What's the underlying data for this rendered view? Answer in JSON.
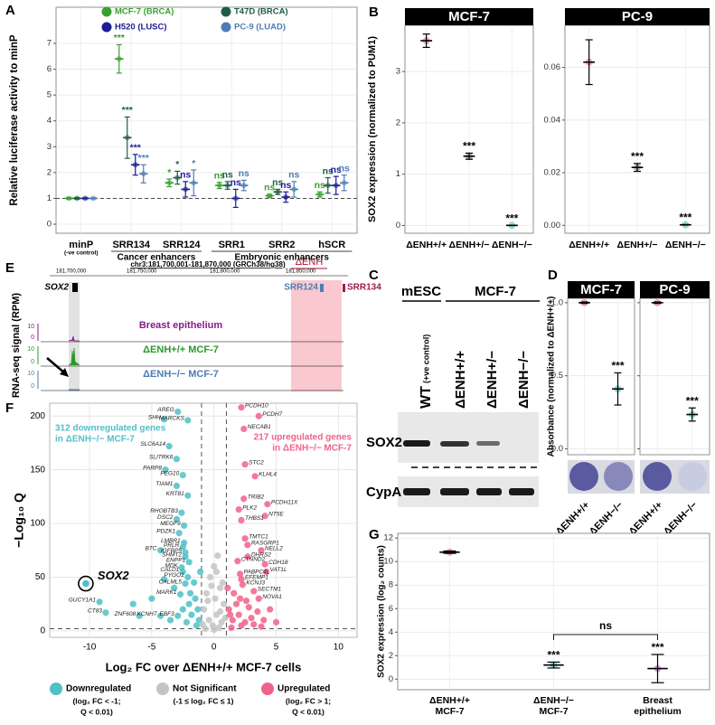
{
  "chart_data": [
    {
      "panel": "A",
      "type": "dot_errorbar",
      "ylabel": "Relative luciferase activity to minP",
      "categories": [
        "minP",
        "SRR134",
        "SRR124",
        "SRR1",
        "SRR2",
        "hSCR"
      ],
      "groups": [
        {
          "label": "(-ve control)",
          "members": [
            0
          ]
        },
        {
          "label": "Cancer enhancers",
          "members": [
            1,
            2
          ]
        },
        {
          "label": "Embryonic enhancers",
          "members": [
            3,
            4,
            5
          ]
        }
      ],
      "series": [
        {
          "name": "MCF-7 (BRCA)",
          "color": "#3aa02e",
          "values": [
            1,
            6.4,
            1.6,
            1.5,
            1.1,
            1.15
          ],
          "errors": [
            0.03,
            0.55,
            0.15,
            0.12,
            0.06,
            0.1
          ],
          "significance": [
            null,
            "***",
            "*",
            "ns",
            "ns",
            "ns"
          ]
        },
        {
          "name": "T47D (BRCA)",
          "color": "#1e5c48",
          "values": [
            1,
            3.35,
            1.8,
            1.5,
            1.25,
            1.5
          ],
          "errors": [
            0.03,
            0.8,
            0.25,
            0.15,
            0.1,
            0.3
          ],
          "significance": [
            null,
            "***",
            "*",
            "ns",
            "ns",
            "ns"
          ]
        },
        {
          "name": "H520 (LUSC)",
          "color": "#1c1c96",
          "values": [
            1,
            2.3,
            1.35,
            1.0,
            1.05,
            1.5
          ],
          "errors": [
            0.02,
            0.4,
            0.3,
            0.35,
            0.2,
            0.35
          ],
          "significance": [
            null,
            "***",
            "ns",
            "ns",
            "ns",
            "ns"
          ]
        },
        {
          "name": "PC-9 (LUAD)",
          "color": "#4d7db5",
          "values": [
            1,
            1.95,
            1.6,
            1.5,
            1.35,
            1.6
          ],
          "errors": [
            0.02,
            0.35,
            0.5,
            0.2,
            0.3,
            0.3
          ],
          "significance": [
            null,
            "***",
            "*",
            "ns",
            "ns",
            "ns"
          ]
        }
      ],
      "ylim": [
        -0.35,
        8.4
      ],
      "yticks": [
        0,
        1,
        2,
        3,
        4,
        5,
        6,
        7
      ],
      "reference_line": 1,
      "grid": true
    },
    {
      "panel": "B",
      "type": "dot_errorbar",
      "title": "MCF-7",
      "ylabel": "SOX2 expression (normalized to PUM1)",
      "categories": [
        "ΔENH+/+",
        "ΔENH+/−",
        "ΔENH−/−"
      ],
      "colors": [
        "#e8607f",
        "#777777",
        "#3fbfc0"
      ],
      "values": [
        3.6,
        1.35,
        0.003
      ],
      "errors": [
        0.13,
        0.06,
        0.003
      ],
      "significance": [
        null,
        "***",
        "***"
      ],
      "ylim": [
        -0.15,
        3.9
      ],
      "yticks": [
        0,
        1,
        2,
        3
      ],
      "errorbar_color": "#000000",
      "grid": true
    },
    {
      "type": "dot_errorbar",
      "title": "PC-9",
      "categories": [
        "ΔENH+/+",
        "ΔENH+/−",
        "ΔENH−/−"
      ],
      "colors": [
        "#e8607f",
        "#777777",
        "#3fbfc0"
      ],
      "values": [
        0.062,
        0.022,
        0.0002
      ],
      "errors": [
        0.0085,
        0.0015,
        0.0001
      ],
      "significance": [
        null,
        "***",
        "***"
      ],
      "ylim": [
        -0.003,
        0.076
      ],
      "yticks": [
        {
          "value": 0,
          "label": "0.00"
        },
        0.02,
        0.04,
        0.06
      ],
      "errorbar_color": "#000000",
      "grid": true
    },
    {
      "panel": "D",
      "type": "dot_errorbar",
      "title": "MCF-7",
      "ylabel": "Absorbance (normalized to ΔENH+/+)",
      "categories": [
        "ΔENH+/+",
        "ΔENH−/−"
      ],
      "colors": [
        "#e8607f",
        "#3fbfc0"
      ],
      "values": [
        1.0,
        0.41
      ],
      "errors": [
        0.005,
        0.11
      ],
      "significance": [
        null,
        "***"
      ],
      "ylim": [
        -0.04,
        1.03
      ],
      "yticks": [
        {
          "value": 0,
          "label": "0.0"
        },
        0.5,
        {
          "value": 1,
          "label": "1.0"
        }
      ],
      "errorbar_color": "#000000",
      "grid": true
    },
    {
      "type": "dot_errorbar",
      "title": "PC-9",
      "categories": [
        "ΔENH+/+",
        "ΔENH−/−"
      ],
      "colors": [
        "#e8607f",
        "#3fbfc0"
      ],
      "values": [
        1.0,
        0.235
      ],
      "errors": [
        0.005,
        0.045
      ],
      "significance": [
        null,
        "***"
      ],
      "ylim": [
        -0.04,
        1.03
      ],
      "yticks": [
        0,
        0.5,
        1
      ],
      "ytick_labels": false,
      "errorbar_color": "#000000",
      "grid": true
    },
    {
      "panel": "F",
      "type": "scatter",
      "xlabel": "Log₂ FC over ΔENH+/+ MCF-7 cells",
      "ylabel": "−Log₁₀ Q",
      "xlim": [
        -13.2,
        11.5
      ],
      "ylim": [
        -6,
        212
      ],
      "xticks": [
        -10,
        -5,
        0,
        5,
        10
      ],
      "yticks": [
        0,
        50,
        100,
        150,
        200
      ],
      "thresholds": {
        "x": [
          -1,
          1
        ],
        "y": 2
      },
      "annotations": [
        [
          "312 downregulated genes",
          "in ΔENH−/− MCF-7"
        ],
        [
          "217 upregulated genes",
          "in ΔENH−/− MCF-7"
        ]
      ],
      "highlight": {
        "label": "SOX2",
        "x": -10.3,
        "y": 44
      },
      "series": [
        {
          "name": "Downregulated",
          "description": [
            "(log₂ FC < -1;",
            "Q < 0.01)"
          ],
          "color": "#4fc0c8",
          "x": [
            -2.9,
            -4.0,
            -2.1,
            -3.6,
            -3.0,
            -3.9,
            -2.5,
            -3.0,
            -2.1,
            -2.6,
            -3.0,
            -2.4,
            -2.8,
            -2.4,
            -2.5,
            -4.3,
            -2.3,
            -2.3,
            -2.0,
            -2.6,
            -2.5,
            -2.1,
            -2.3,
            -2.7,
            -9.2,
            -8.7,
            -6.0,
            -4.3,
            -2.9,
            -1.5,
            -2.0,
            -1.3,
            -1.8,
            -3.2,
            -1.6,
            -1.2,
            -2.5,
            -3.5,
            -1.4,
            -5.0,
            -6.5,
            -2.2,
            -1.9,
            -1.1,
            -4.0
          ],
          "y": [
            204,
            197,
            196,
            172,
            160,
            150,
            145,
            135,
            126,
            110,
            104,
            98,
            91,
            82,
            78,
            75,
            73,
            69,
            64,
            59,
            55,
            50,
            44,
            34,
            27,
            17,
            14,
            14,
            14,
            30,
            25,
            20,
            15,
            40,
            45,
            10,
            20,
            10,
            5,
            30,
            25,
            8,
            35,
            55,
            48
          ],
          "labels": [
            "AREG",
            "SHH",
            "MARCKS",
            "SLC6A14",
            "SLITRK6",
            "PARP8",
            "PEG10",
            "TIAM1",
            "KRT81",
            "RHOBTB3",
            "DSC2",
            "MEGF9",
            "PDZK1",
            "LMBR1",
            "PRLR",
            "BTC",
            "IGFBP5",
            "SHMT2",
            "ENPP1",
            "MDK",
            "CALD1",
            "PYGO1",
            "CALML5",
            "MARK1",
            "GUCY1A1",
            "CT83",
            "ZNF608",
            "KCNH7",
            "EBF3",
            null,
            null,
            null,
            null,
            null,
            null,
            null,
            null,
            null,
            null,
            null,
            null,
            null,
            null,
            null,
            null
          ]
        },
        {
          "name": "Not Significant",
          "description": [
            "(-1 ≤ log₂ FC ≤ 1)"
          ],
          "color": "#c4c4c4",
          "x": [
            0,
            0.3,
            -0.3,
            0.5,
            -0.6,
            0.1,
            0.8,
            -0.8,
            0.2,
            -0.4,
            0.6,
            -0.1,
            0.4,
            -0.7,
            0.9,
            -0.9,
            0.0,
            0.5,
            -0.5,
            0.7,
            0.2,
            -0.2
          ],
          "y": [
            60,
            70,
            50,
            40,
            35,
            30,
            25,
            20,
            15,
            10,
            8,
            5,
            3,
            2,
            12,
            6,
            1,
            18,
            28,
            45,
            55,
            42
          ]
        },
        {
          "name": "Upregulated",
          "description": [
            "(log₂ FC > 1;",
            "Q < 0.01)"
          ],
          "color": "#f0628a",
          "x": [
            2.2,
            3.6,
            2.4,
            2.5,
            3.3,
            2.4,
            4.3,
            2.0,
            4.1,
            2.2,
            2.5,
            2.7,
            3.8,
            2.7,
            1.9,
            4.1,
            2.1,
            4.2,
            2.2,
            2.3,
            3.2,
            3.6,
            1.5,
            2.0,
            2.5,
            3.0,
            1.2,
            1.8,
            2.2,
            3.5,
            4.0,
            1.4,
            2.8,
            1.6,
            3.2,
            4.5,
            1.1,
            2.6,
            3.8,
            1.3,
            5.0,
            2.1
          ],
          "y": [
            208,
            200,
            188,
            155,
            144,
            123,
            118,
            113,
            107,
            103,
            86,
            80,
            75,
            69,
            65,
            62,
            53,
            55,
            48,
            43,
            37,
            30,
            10,
            15,
            8,
            12,
            20,
            25,
            5,
            18,
            10,
            3,
            22,
            35,
            6,
            20,
            40,
            28,
            4,
            15,
            8,
            30
          ],
          "labels": [
            "PCDH10",
            "PCDH7",
            "NECAB1",
            "STC2",
            "KLHL4",
            "TRIB2",
            "PCDH11X",
            "PLK2",
            "NT5E",
            "THBS1",
            "TMTC1",
            "RASGRP1",
            "NELL2",
            "DHRS2",
            "CTNND2",
            "CDH18",
            "PABPC4L",
            "VAT1L",
            "EFEMP1",
            "KCNJ3",
            "SECTM1",
            "NOVA1",
            null,
            null,
            null,
            null,
            null,
            null,
            null,
            null,
            null,
            null,
            null,
            null,
            null,
            null,
            null,
            null,
            null,
            null,
            null,
            null
          ]
        }
      ],
      "grid": true
    },
    {
      "panel": "G",
      "type": "dot_errorbar",
      "ylabel": "SOX2 expression (log₂ counts)",
      "categories": [
        [
          "ΔENH+/+",
          "MCF-7"
        ],
        [
          "ΔENH−/−",
          "MCF-7"
        ],
        [
          "Breast",
          "epithelium"
        ]
      ],
      "colors": [
        "#e8607f",
        "#3fbfc0",
        "#b06cc0"
      ],
      "values": [
        10.8,
        1.2,
        0.9
      ],
      "errors": [
        0.1,
        0.25,
        1.2
      ],
      "significance": [
        null,
        "***",
        "***"
      ],
      "comparisons": [
        {
          "label": "ns",
          "between": [
            1,
            2
          ]
        }
      ],
      "ylim": [
        -0.9,
        12.4
      ],
      "yticks": [
        0,
        2,
        4,
        6,
        8,
        10,
        12
      ],
      "errorbar_color": "#000000",
      "grid": true
    }
  ],
  "browser": {
    "panel": "E",
    "region": "chr3:181,700,001-181,870,000 (GRCh38/hg38)",
    "coordinates": [
      "181,700,000",
      "181,750,000",
      "181,800,000",
      "181,850,000"
    ],
    "deletion": "ΔENH",
    "gene": "SOX2",
    "enhancers": [
      "SRR124",
      "SRR134"
    ],
    "ylabel": "RNA-seq signal (RPM)",
    "tracks": [
      {
        "name": "Breast epithelium",
        "scale": [
          "10",
          "0"
        ]
      },
      {
        "name": "ΔENH+/+ MCF-7",
        "scale": [
          "10",
          "0"
        ]
      },
      {
        "name": "ΔENH−/− MCF-7",
        "scale": [
          "10",
          "0"
        ]
      }
    ]
  },
  "blot": {
    "panel": "C",
    "groups": [
      "mESC",
      "MCF-7"
    ],
    "lanes": [
      {
        "label": "WT",
        "note": "(+ve control)"
      },
      {
        "label": "ΔENH+/+"
      },
      {
        "label": "ΔENH+/−"
      },
      {
        "label": "ΔENH−/−"
      }
    ],
    "rows": [
      "SOX2",
      "CypA"
    ]
  }
}
